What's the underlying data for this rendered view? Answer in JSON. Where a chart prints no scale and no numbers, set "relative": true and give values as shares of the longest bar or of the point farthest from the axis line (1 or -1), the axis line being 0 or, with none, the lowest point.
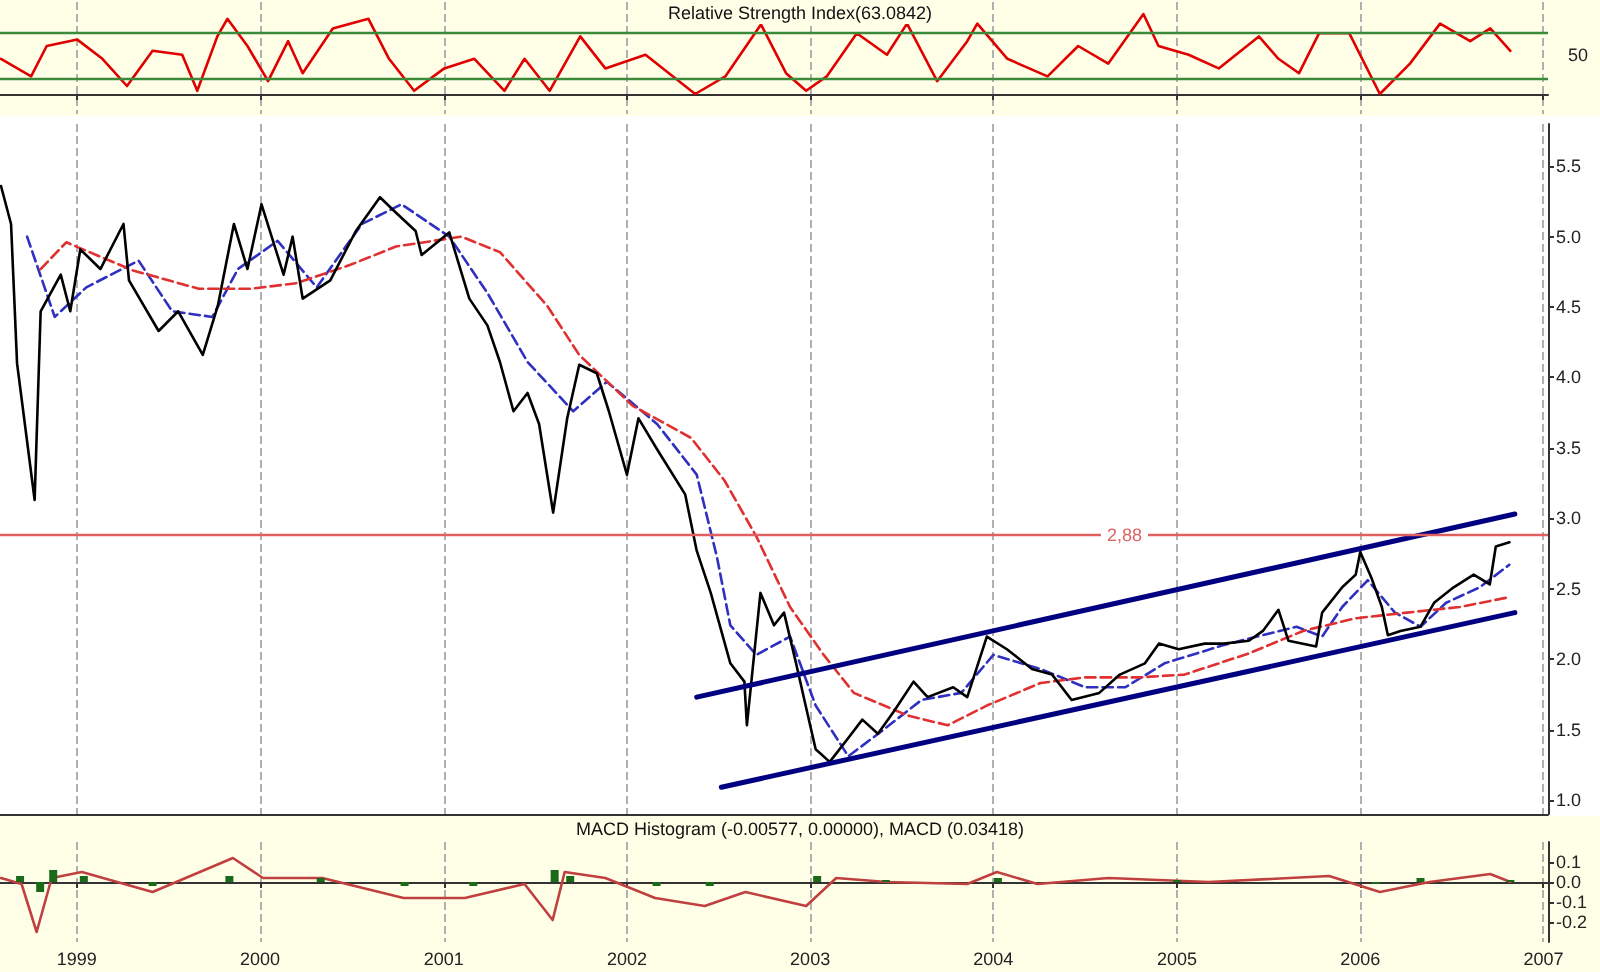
{
  "chart_data": [
    {
      "type": "line",
      "title": "Relative Strength Index(63.0842)",
      "relative": true,
      "annotations": [
        "50"
      ],
      "xlim": [
        "1998-08-01",
        "2007-01-10"
      ],
      "xticks": [
        "1999",
        "2000",
        "2001",
        "2002",
        "2003",
        "2004",
        "2005",
        "2006",
        "2007"
      ],
      "grid": "x",
      "tick_labels": false,
      "marker": "none",
      "ref_lines": [
        {
          "axis": "y",
          "value": 0.19,
          "color": "#3a8a3a"
        },
        {
          "axis": "y",
          "value": 0.78,
          "color": "#3a8a3a"
        }
      ],
      "series": [
        {
          "color": "#e00000",
          "line_style": "solid",
          "x": [
            "1998-08-03",
            "1998-10-02",
            "1998-11-02",
            "1999-01-02",
            "1999-02-21",
            "1999-04-11",
            "1999-06-01",
            "1999-07-30",
            "1999-08-29",
            "1999-10-08",
            "1999-10-28",
            "1999-12-07",
            "2000-01-17",
            "2000-02-26",
            "2000-03-26",
            "2000-05-25",
            "2000-08-04",
            "2000-09-14",
            "2000-11-03",
            "2001-01-02",
            "2001-03-03",
            "2001-05-02",
            "2001-06-11",
            "2001-07-31",
            "2001-09-30",
            "2001-11-19",
            "2002-02-07",
            "2002-05-17",
            "2002-07-16",
            "2002-09-25",
            "2002-11-14",
            "2002-12-24",
            "2003-02-03",
            "2003-04-04",
            "2003-06-03",
            "2003-07-13",
            "2003-09-11",
            "2003-11-10",
            "2003-11-30",
            "2004-01-29",
            "2004-04-18",
            "2004-06-18",
            "2004-08-17",
            "2004-10-26",
            "2004-11-25",
            "2005-01-24",
            "2005-03-25",
            "2005-06-13",
            "2005-07-22",
            "2005-09-01",
            "2005-10-11",
            "2005-12-10",
            "2006-02-09",
            "2006-04-10",
            "2006-06-09",
            "2006-08-08",
            "2006-09-17",
            "2006-10-27"
          ],
          "values": [
            0.44,
            0.22,
            0.6,
            0.68,
            0.44,
            0.1,
            0.54,
            0.49,
            0.04,
            0.72,
            0.94,
            0.6,
            0.16,
            0.66,
            0.26,
            0.82,
            0.94,
            0.44,
            0.04,
            0.32,
            0.44,
            0.04,
            0.44,
            0.04,
            0.72,
            0.32,
            0.49,
            0,
            0.22,
            0.87,
            0.26,
            0.04,
            0.22,
            0.76,
            0.49,
            0.88,
            0.16,
            0.66,
            0.88,
            0.44,
            0.22,
            0.6,
            0.38,
            1,
            0.6,
            0.49,
            0.32,
            0.72,
            0.44,
            0.26,
            0.76,
            0.76,
            0,
            0.38,
            0.88,
            0.66,
            0.82,
            0.54
          ]
        }
      ]
    },
    {
      "type": "line",
      "xlim": [
        "1998-08-01",
        "2007-01-10"
      ],
      "xticks": [
        "1999",
        "2000",
        "2001",
        "2002",
        "2003",
        "2004",
        "2005",
        "2006",
        "2007"
      ],
      "ylim": [
        0.9,
        5.8
      ],
      "yticks": [
        {
          "value": 1,
          "label": "1.0"
        },
        1.5,
        {
          "value": 2,
          "label": "2.0"
        },
        2.5,
        {
          "value": 3,
          "label": "3.0"
        },
        3.5,
        {
          "value": 4,
          "label": "4.0"
        },
        4.5,
        {
          "value": 5,
          "label": "5.0"
        },
        5.5
      ],
      "grid": "x",
      "tick_labels": "y",
      "marker": "none",
      "ref_lines": [
        {
          "axis": "y",
          "value": 2.88,
          "label": "2,88",
          "color": "#e06060"
        }
      ],
      "series": [
        {
          "color": "#3030c0",
          "line_style": "dashed",
          "x": [
            "1998-09-24",
            "1998-11-18",
            "1999-01-20",
            "1999-05-04",
            "1999-07-10",
            "1999-09-28",
            "1999-11-18",
            "2000-02-05",
            "2000-04-23",
            "2000-07-22",
            "2000-10-09",
            "2001-01-12",
            "2001-03-29",
            "2001-06-17",
            "2001-09-16",
            "2001-11-22",
            "2002-03-02",
            "2002-05-20",
            "2002-06-29",
            "2002-07-26",
            "2002-09-16",
            "2002-11-22",
            "2003-01-12",
            "2003-03-18",
            "2003-05-24",
            "2003-08-11",
            "2003-10-29",
            "2004-01-01",
            "2004-04-04",
            "2004-07-02",
            "2004-09-20",
            "2004-12-07",
            "2005-04-04",
            "2005-06-21",
            "2005-08-27",
            "2005-10-17",
            "2005-11-26",
            "2006-01-16",
            "2006-03-11",
            "2006-05-01",
            "2006-06-21",
            "2006-08-27",
            "2006-10-25"
          ],
          "values": [
            5.0,
            4.43,
            4.64,
            4.83,
            4.47,
            4.43,
            4.77,
            4.97,
            4.64,
            5.09,
            5.23,
            5.0,
            4.6,
            4.11,
            3.76,
            3.97,
            3.67,
            3.31,
            2.73,
            2.24,
            2.03,
            2.16,
            1.67,
            1.31,
            1.49,
            1.71,
            1.76,
            2.03,
            1.93,
            1.8,
            1.8,
            1.97,
            2.1,
            2.17,
            2.23,
            2.16,
            2.37,
            2.56,
            2.33,
            2.23,
            2.4,
            2.51,
            2.67
          ]
        },
        {
          "color": "#e03030",
          "line_style": "dashed",
          "x": [
            "1998-10-21",
            "1998-12-11",
            "1999-04-23",
            "1999-09-01",
            "1999-12-15",
            "2000-03-14",
            "2000-06-29",
            "2000-09-28",
            "2001-02-05",
            "2001-04-23",
            "2001-07-26",
            "2001-09-28",
            "2002-01-12",
            "2002-05-09",
            "2002-07-14",
            "2002-09-16",
            "2002-11-22",
            "2003-01-28",
            "2003-03-29",
            "2003-07-14",
            "2003-10-02",
            "2003-12-19",
            "2004-04-04",
            "2004-07-02",
            "2004-10-17",
            "2005-01-16",
            "2005-05-24",
            "2005-09-09",
            "2005-12-23",
            "2006-04-04",
            "2006-07-18",
            "2006-10-25"
          ],
          "values": [
            4.77,
            4.96,
            4.76,
            4.63,
            4.63,
            4.67,
            4.8,
            4.93,
            5.0,
            4.89,
            4.51,
            4.16,
            3.8,
            3.57,
            3.27,
            2.87,
            2.37,
            2.03,
            1.76,
            1.6,
            1.53,
            1.67,
            1.83,
            1.87,
            1.87,
            1.89,
            2.04,
            2.2,
            2.29,
            2.33,
            2.37,
            2.44
          ]
        },
        {
          "color": "#000000",
          "line_style": "solid",
          "x": [
            "1998-08-03",
            "1998-08-23",
            "1998-09-04",
            "1998-10-09",
            "1998-10-21",
            "1998-11-30",
            "1998-12-19",
            "1999-01-08",
            "1999-02-17",
            "1999-04-04",
            "1999-04-15",
            "1999-06-13",
            "1999-07-22",
            "1999-09-09",
            "1999-10-09",
            "1999-11-10",
            "1999-12-07",
            "2000-01-04",
            "2000-02-17",
            "2000-03-06",
            "2000-03-26",
            "2000-05-20",
            "2000-07-10",
            "2000-08-27",
            "2000-09-28",
            "2000-11-06",
            "2000-11-18",
            "2001-01-12",
            "2001-02-21",
            "2001-03-29",
            "2001-04-23",
            "2001-05-20",
            "2001-06-17",
            "2001-07-10",
            "2001-08-07",
            "2001-09-04",
            "2001-09-28",
            "2001-11-02",
            "2001-11-26",
            "2002-01-01",
            "2002-01-24",
            "2002-03-02",
            "2002-04-27",
            "2002-05-20",
            "2002-06-17",
            "2002-07-26",
            "2002-08-23",
            "2002-08-28",
            "2002-09-24",
            "2002-10-21",
            "2002-11-10",
            "2002-12-04",
            "2002-12-23",
            "2003-01-12",
            "2003-02-09",
            "2003-03-18",
            "2003-04-15",
            "2003-05-16",
            "2003-06-17",
            "2003-07-26",
            "2003-08-23",
            "2003-10-13",
            "2003-11-10",
            "2003-12-19",
            "2004-01-28",
            "2004-03-18",
            "2004-04-27",
            "2004-06-05",
            "2004-07-30",
            "2004-09-09",
            "2004-10-29",
            "2004-11-26",
            "2005-01-04",
            "2005-02-25",
            "2005-04-04",
            "2005-05-24",
            "2005-06-21",
            "2005-07-22",
            "2005-08-11",
            "2005-10-05",
            "2005-10-17",
            "2005-11-26",
            "2005-12-23",
            "2006-01-01",
            "2006-01-24",
            "2006-02-13",
            "2006-02-25",
            "2006-03-22",
            "2006-05-01",
            "2006-05-28",
            "2006-07-06",
            "2006-08-15",
            "2006-09-16",
            "2006-09-28",
            "2006-10-25"
          ],
          "values": [
            5.36,
            5.09,
            4.1,
            3.13,
            4.47,
            4.73,
            4.47,
            4.91,
            4.77,
            5.09,
            4.69,
            4.33,
            4.47,
            4.16,
            4.51,
            5.09,
            4.77,
            5.23,
            4.73,
            5.0,
            4.56,
            4.69,
            5.04,
            5.28,
            5.17,
            5.04,
            4.87,
            5.03,
            4.56,
            4.37,
            4.11,
            3.76,
            3.89,
            3.67,
            3.04,
            3.71,
            4.09,
            4.03,
            3.76,
            3.31,
            3.71,
            3.49,
            3.17,
            2.77,
            2.47,
            1.97,
            1.84,
            1.53,
            2.47,
            2.24,
            2.33,
            1.97,
            1.67,
            1.36,
            1.27,
            1.44,
            1.57,
            1.47,
            1.63,
            1.84,
            1.73,
            1.8,
            1.73,
            2.16,
            2.07,
            1.93,
            1.89,
            1.71,
            1.76,
            1.89,
            1.97,
            2.11,
            2.07,
            2.11,
            2.11,
            2.13,
            2.2,
            2.35,
            2.13,
            2.09,
            2.33,
            2.51,
            2.6,
            2.76,
            2.57,
            2.37,
            2.17,
            2.2,
            2.23,
            2.4,
            2.51,
            2.6,
            2.53,
            2.8,
            2.83
          ]
        },
        {
          "color": "#000080",
          "line_style": "solid",
          "x": [
            "2002-05-20",
            "2006-11-05"
          ],
          "values": [
            1.73,
            3.03
          ]
        },
        {
          "color": "#000080",
          "line_style": "solid",
          "x": [
            "2002-07-08",
            "2006-11-05"
          ],
          "values": [
            1.09,
            2.33
          ]
        }
      ]
    },
    {
      "type": "line",
      "title": "MACD Histogram (-0.00577, 0.00000), MACD (0.03418)",
      "xlim": [
        "1998-08-01",
        "2007-01-10"
      ],
      "xticks": [
        "1999",
        "2000",
        "2001",
        "2002",
        "2003",
        "2004",
        "2005",
        "2006",
        "2007"
      ],
      "ylim": [
        -0.3,
        0.2
      ],
      "yticks": [
        -0.2,
        -0.1,
        {
          "value": 0,
          "label": "0.0"
        },
        0.1
      ],
      "grid": "x",
      "marker": "none",
      "series": [
        {
          "type": "bar",
          "color": "#1a6a1a",
          "x": [
            "1998-09-10",
            "1998-10-20",
            "1998-11-15",
            "1999-01-15",
            "1999-06-01",
            "1999-11-01",
            "2000-05-01",
            "2000-10-15",
            "2001-03-01",
            "2001-08-10",
            "2001-09-10",
            "2002-03-01",
            "2002-06-15",
            "2003-01-15",
            "2003-06-01",
            "2004-01-10",
            "2005-01-01",
            "2006-02-01",
            "2006-05-01",
            "2006-10-27"
          ],
          "values": [
            0.03,
            -0.05,
            0.06,
            0.03,
            -0.02,
            0.03,
            0.02,
            -0.02,
            -0.02,
            0.06,
            0.03,
            -0.02,
            -0.02,
            0.03,
            0.01,
            0.02,
            0.01,
            -0.01,
            0.02,
            0.01
          ]
        },
        {
          "color": "#c04040",
          "line_style": "solid",
          "x": [
            "1998-08-03",
            "1998-09-13",
            "1998-10-13",
            "1998-11-12",
            "1999-01-11",
            "1999-06-01",
            "1999-11-08",
            "2000-01-07",
            "2000-05-04",
            "2000-10-13",
            "2001-02-12",
            "2001-06-11",
            "2001-08-06",
            "2001-08-30",
            "2001-11-19",
            "2002-02-26",
            "2002-06-05",
            "2002-08-25",
            "2002-12-24",
            "2003-02-22",
            "2003-06-03",
            "2003-11-10",
            "2004-01-08",
            "2004-03-29",
            "2004-08-17",
            "2005-03-05",
            "2005-10-31",
            "2006-02-09",
            "2006-05-19",
            "2006-09-17",
            "2006-10-27"
          ],
          "values": [
            0.02,
            -0.01,
            -0.25,
            0.02,
            0.05,
            -0.05,
            0.12,
            0.02,
            0.02,
            -0.08,
            -0.08,
            -0.01,
            -0.19,
            0.05,
            0.02,
            -0.08,
            -0.12,
            -0.05,
            -0.12,
            0.02,
            0.0,
            -0.01,
            0.05,
            -0.01,
            0.02,
            0.0,
            0.03,
            -0.05,
            0.0,
            0.04,
            0.0
          ]
        }
      ]
    }
  ]
}
